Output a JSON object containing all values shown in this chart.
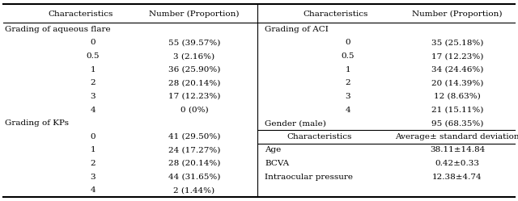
{
  "bg_color": "#ffffff",
  "left_header": [
    "Characteristics",
    "Number (Proportion)"
  ],
  "right_header": [
    "Characteristics",
    "Number (Proportion)"
  ],
  "left_rows": [
    [
      "Grading of aqueous flare",
      ""
    ],
    [
      "0",
      "55 (39.57%)"
    ],
    [
      "0.5",
      "3 (2.16%)"
    ],
    [
      "1",
      "36 (25.90%)"
    ],
    [
      "2",
      "28 (20.14%)"
    ],
    [
      "3",
      "17 (12.23%)"
    ],
    [
      "4",
      "0 (0%)"
    ],
    [
      "Grading of KPs",
      ""
    ],
    [
      "0",
      "41 (29.50%)"
    ],
    [
      "1",
      "24 (17.27%)"
    ],
    [
      "2",
      "28 (20.14%)"
    ],
    [
      "3",
      "44 (31.65%)"
    ],
    [
      "4",
      "2 (1.44%)"
    ]
  ],
  "right_rows": [
    [
      "Grading of ACI",
      ""
    ],
    [
      "0",
      "35 (25.18%)"
    ],
    [
      "0.5",
      "17 (12.23%)"
    ],
    [
      "1",
      "34 (24.46%)"
    ],
    [
      "2",
      "20 (14.39%)"
    ],
    [
      "3",
      "12 (8.63%)"
    ],
    [
      "4",
      "21 (15.11%)"
    ],
    [
      "Gender (male)",
      "95 (68.35%)"
    ],
    [
      "Characteristics",
      "Average± standard deviation"
    ],
    [
      "Age",
      "38.11±14.84"
    ],
    [
      "BCVA",
      "0.42±0.33"
    ],
    [
      "Intraocular pressure",
      "12.38±4.74"
    ]
  ],
  "font_size": 7.5,
  "header_font_size": 7.5,
  "section_headers_left": [
    "Grading of aqueous flare",
    "Grading of KPs"
  ],
  "section_headers_right": [
    "Grading of ACI"
  ],
  "sub_header_right": "Characteristics",
  "sub_header_right_val": "Average± standard deviation"
}
